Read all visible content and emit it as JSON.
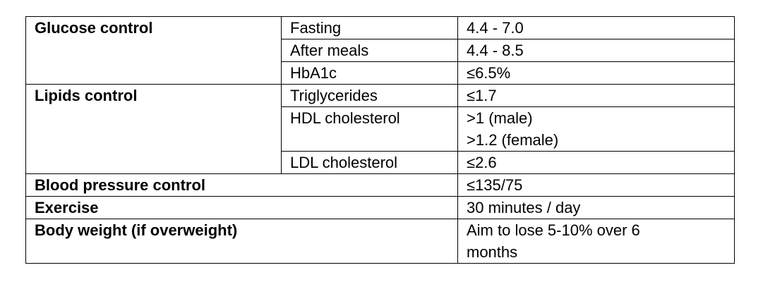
{
  "table": {
    "glucose": {
      "label": "Glucose control",
      "rows": [
        {
          "item": "Fasting",
          "value": "4.4 - 7.0"
        },
        {
          "item": "After meals",
          "value": "4.4 - 8.5"
        },
        {
          "item": "HbA1c",
          "value": "≤6.5%"
        }
      ]
    },
    "lipids": {
      "label": "Lipids control",
      "rows": [
        {
          "item": "Triglycerides",
          "value": "≤1.7"
        },
        {
          "item": "HDL cholesterol",
          "value_lines": [
            ">1 (male)",
            ">1.2 (female)"
          ]
        },
        {
          "item": "LDL cholesterol",
          "value": "≤2.6"
        }
      ]
    },
    "blood_pressure": {
      "label": "Blood pressure control",
      "value": "≤135/75"
    },
    "exercise": {
      "label": "Exercise",
      "value": "30 minutes / day"
    },
    "body_weight": {
      "label": "Body weight (if overweight)",
      "value_lines": [
        "Aim to lose 5-10% over 6",
        "months"
      ]
    }
  }
}
